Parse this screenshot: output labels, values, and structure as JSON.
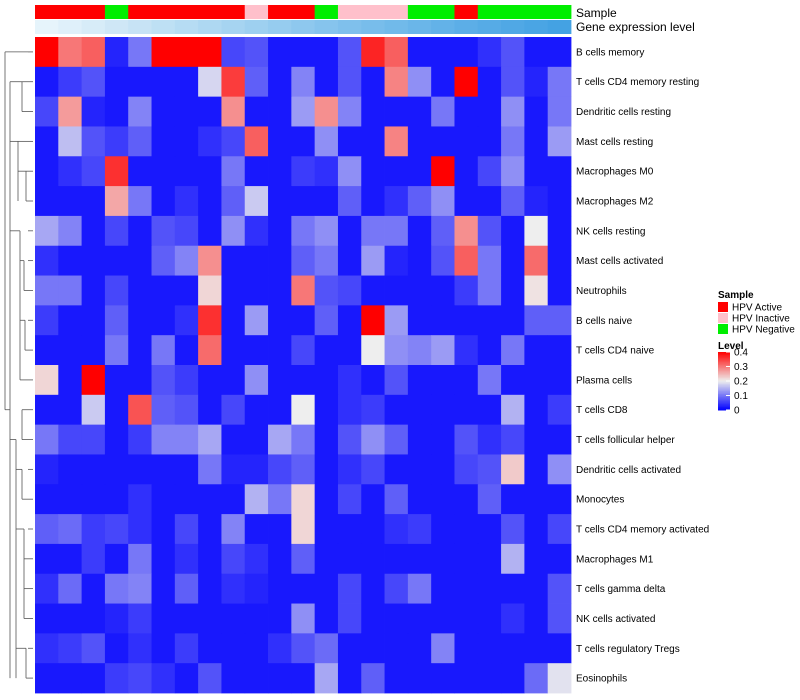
{
  "chart_data": {
    "type": "heatmap",
    "annotation_labels": {
      "sample": "Sample",
      "expression": "Gene expression level"
    },
    "rows": [
      "B cells memory",
      "T cells CD4 memory resting",
      "Dendritic cells resting",
      "Mast cells resting",
      "Macrophages M0",
      "Macrophages M2",
      "NK cells resting",
      "Mast cells activated",
      "Neutrophils",
      "B cells naive",
      "T cells CD4 naive",
      "Plasma cells",
      "T cells CD8",
      "T cells follicular helper",
      "Dendritic cells activated",
      "Monocytes",
      "T cells CD4 memory activated",
      "Macrophages M1",
      "T cells gamma delta",
      "NK cells activated",
      "T cells regulatory  Tregs",
      "Eosinophils"
    ],
    "sample_groups": [
      "HPV Active",
      "HPV Active",
      "HPV Active",
      "HPV Negative",
      "HPV Active",
      "HPV Active",
      "HPV Active",
      "HPV Active",
      "HPV Active",
      "HPV Inactive",
      "HPV Active",
      "HPV Active",
      "HPV Negative",
      "HPV Inactive",
      "HPV Inactive",
      "HPV Inactive",
      "HPV Negative",
      "HPV Negative",
      "HPV Active",
      "HPV Negative",
      "HPV Negative",
      "HPV Negative",
      "HPV Negative"
    ],
    "values": [
      [
        0.4,
        0.3,
        0.32,
        0.03,
        0.1,
        0.4,
        0.4,
        0.4,
        0.06,
        0.07,
        0.02,
        0.02,
        0.02,
        0.07,
        0.37,
        0.32,
        0.02,
        0.02,
        0.02,
        0.04,
        0.07,
        0.02,
        0.02
      ],
      [
        0.02,
        0.05,
        0.07,
        0.02,
        0.02,
        0.02,
        0.02,
        0.18,
        0.35,
        0.08,
        0.02,
        0.11,
        0.02,
        0.07,
        0.02,
        0.29,
        0.12,
        0.02,
        0.4,
        0.02,
        0.07,
        0.03,
        0.1
      ],
      [
        0.06,
        0.27,
        0.03,
        0.02,
        0.11,
        0.02,
        0.02,
        0.02,
        0.28,
        0.02,
        0.02,
        0.13,
        0.28,
        0.11,
        0.02,
        0.02,
        0.02,
        0.1,
        0.02,
        0.02,
        0.12,
        0.02,
        0.1
      ],
      [
        0.02,
        0.16,
        0.07,
        0.05,
        0.08,
        0.02,
        0.02,
        0.04,
        0.06,
        0.32,
        0.02,
        0.02,
        0.12,
        0.02,
        0.02,
        0.29,
        0.02,
        0.02,
        0.02,
        0.02,
        0.1,
        0.02,
        0.13
      ],
      [
        0.02,
        0.04,
        0.06,
        0.36,
        0.02,
        0.02,
        0.02,
        0.02,
        0.1,
        0.02,
        0.02,
        0.05,
        0.04,
        0.12,
        0.02,
        0.02,
        0.02,
        0.4,
        0.02,
        0.06,
        0.12,
        0.02,
        0.02
      ],
      [
        0.02,
        0.02,
        0.02,
        0.26,
        0.1,
        0.02,
        0.04,
        0.02,
        0.08,
        0.17,
        0.02,
        0.02,
        0.02,
        0.08,
        0.02,
        0.04,
        0.08,
        0.12,
        0.02,
        0.02,
        0.08,
        0.03,
        0.02
      ],
      [
        0.14,
        0.11,
        0.02,
        0.06,
        0.02,
        0.07,
        0.06,
        0.02,
        0.12,
        0.04,
        0.02,
        0.1,
        0.12,
        0.02,
        0.1,
        0.1,
        0.02,
        0.08,
        0.28,
        0.07,
        0.02,
        0.2,
        0.02
      ],
      [
        0.04,
        0.02,
        0.02,
        0.02,
        0.02,
        0.08,
        0.11,
        0.28,
        0.02,
        0.02,
        0.02,
        0.08,
        0.1,
        0.02,
        0.13,
        0.03,
        0.02,
        0.07,
        0.32,
        0.1,
        0.02,
        0.31,
        0.02
      ],
      [
        0.1,
        0.1,
        0.02,
        0.06,
        0.02,
        0.02,
        0.02,
        0.22,
        0.02,
        0.02,
        0.02,
        0.3,
        0.07,
        0.06,
        0.02,
        0.02,
        0.02,
        0.02,
        0.05,
        0.1,
        0.02,
        0.21,
        0.02
      ],
      [
        0.05,
        0.02,
        0.02,
        0.08,
        0.02,
        0.02,
        0.04,
        0.36,
        0.02,
        0.13,
        0.02,
        0.02,
        0.08,
        0.02,
        0.4,
        0.13,
        0.02,
        0.02,
        0.02,
        0.02,
        0.02,
        0.08,
        0.08
      ],
      [
        0.02,
        0.02,
        0.02,
        0.1,
        0.02,
        0.1,
        0.02,
        0.31,
        0.02,
        0.02,
        0.02,
        0.06,
        0.02,
        0.02,
        0.2,
        0.12,
        0.11,
        0.13,
        0.04,
        0.02,
        0.1,
        0.02,
        0.02
      ],
      [
        0.22,
        0.02,
        0.4,
        0.02,
        0.02,
        0.07,
        0.05,
        0.02,
        0.02,
        0.12,
        0.02,
        0.02,
        0.02,
        0.04,
        0.02,
        0.07,
        0.02,
        0.02,
        0.02,
        0.1,
        0.02,
        0.02,
        0.02
      ],
      [
        0.02,
        0.02,
        0.17,
        0.02,
        0.33,
        0.08,
        0.07,
        0.02,
        0.06,
        0.02,
        0.02,
        0.2,
        0.02,
        0.04,
        0.05,
        0.02,
        0.02,
        0.02,
        0.02,
        0.02,
        0.15,
        0.02,
        0.05
      ],
      [
        0.1,
        0.06,
        0.06,
        0.02,
        0.05,
        0.11,
        0.11,
        0.14,
        0.02,
        0.02,
        0.14,
        0.1,
        0.02,
        0.07,
        0.12,
        0.08,
        0.02,
        0.02,
        0.07,
        0.04,
        0.06,
        0.02,
        0.02
      ],
      [
        0.03,
        0.02,
        0.02,
        0.02,
        0.02,
        0.02,
        0.02,
        0.1,
        0.03,
        0.03,
        0.06,
        0.08,
        0.02,
        0.04,
        0.06,
        0.02,
        0.02,
        0.02,
        0.06,
        0.07,
        0.23,
        0.02,
        0.12
      ],
      [
        0.02,
        0.02,
        0.02,
        0.02,
        0.04,
        0.02,
        0.02,
        0.02,
        0.02,
        0.15,
        0.1,
        0.22,
        0.02,
        0.06,
        0.02,
        0.08,
        0.02,
        0.02,
        0.02,
        0.08,
        0.02,
        0.02,
        0.02
      ],
      [
        0.08,
        0.09,
        0.05,
        0.06,
        0.04,
        0.02,
        0.06,
        0.02,
        0.11,
        0.02,
        0.02,
        0.22,
        0.02,
        0.02,
        0.02,
        0.04,
        0.05,
        0.02,
        0.02,
        0.02,
        0.07,
        0.02,
        0.06
      ],
      [
        0.02,
        0.02,
        0.05,
        0.02,
        0.1,
        0.02,
        0.04,
        0.02,
        0.06,
        0.04,
        0.02,
        0.08,
        0.02,
        0.02,
        0.02,
        0.02,
        0.02,
        0.02,
        0.02,
        0.02,
        0.15,
        0.02,
        0.02
      ],
      [
        0.04,
        0.09,
        0.02,
        0.1,
        0.11,
        0.02,
        0.08,
        0.02,
        0.04,
        0.03,
        0.02,
        0.02,
        0.02,
        0.06,
        0.02,
        0.06,
        0.1,
        0.02,
        0.02,
        0.02,
        0.02,
        0.02,
        0.07
      ],
      [
        0.02,
        0.02,
        0.02,
        0.03,
        0.05,
        0.02,
        0.02,
        0.02,
        0.02,
        0.02,
        0.02,
        0.12,
        0.02,
        0.06,
        0.02,
        0.02,
        0.02,
        0.02,
        0.02,
        0.02,
        0.04,
        0.02,
        0.07
      ],
      [
        0.04,
        0.05,
        0.07,
        0.02,
        0.04,
        0.02,
        0.05,
        0.02,
        0.02,
        0.02,
        0.04,
        0.07,
        0.09,
        0.02,
        0.02,
        0.02,
        0.02,
        0.11,
        0.02,
        0.02,
        0.02,
        0.02,
        0.02
      ],
      [
        0.02,
        0.02,
        0.02,
        0.05,
        0.06,
        0.04,
        0.02,
        0.07,
        0.02,
        0.02,
        0.02,
        0.02,
        0.14,
        0.02,
        0.08,
        0.02,
        0.02,
        0.02,
        0.02,
        0.02,
        0.02,
        0.09,
        0.19
      ]
    ],
    "legend_sample": {
      "title": "Sample",
      "items": [
        {
          "label": "HPV Active",
          "color": "#ff0000"
        },
        {
          "label": "HPV Inactive",
          "color": "#ffc0cb"
        },
        {
          "label": "HPV Negative",
          "color": "#00ee00"
        }
      ]
    },
    "legend_level": {
      "title": "Level",
      "ticks": [
        "0.4",
        "0.3",
        "0.2",
        "0.1",
        "0"
      ],
      "tick_values": [
        0.4,
        0.3,
        0.2,
        0.1,
        0
      ],
      "range": [
        0,
        0.4
      ],
      "colors": {
        "low": "#0000ff",
        "mid": "#eeeeee",
        "high": "#ff0000"
      }
    }
  }
}
